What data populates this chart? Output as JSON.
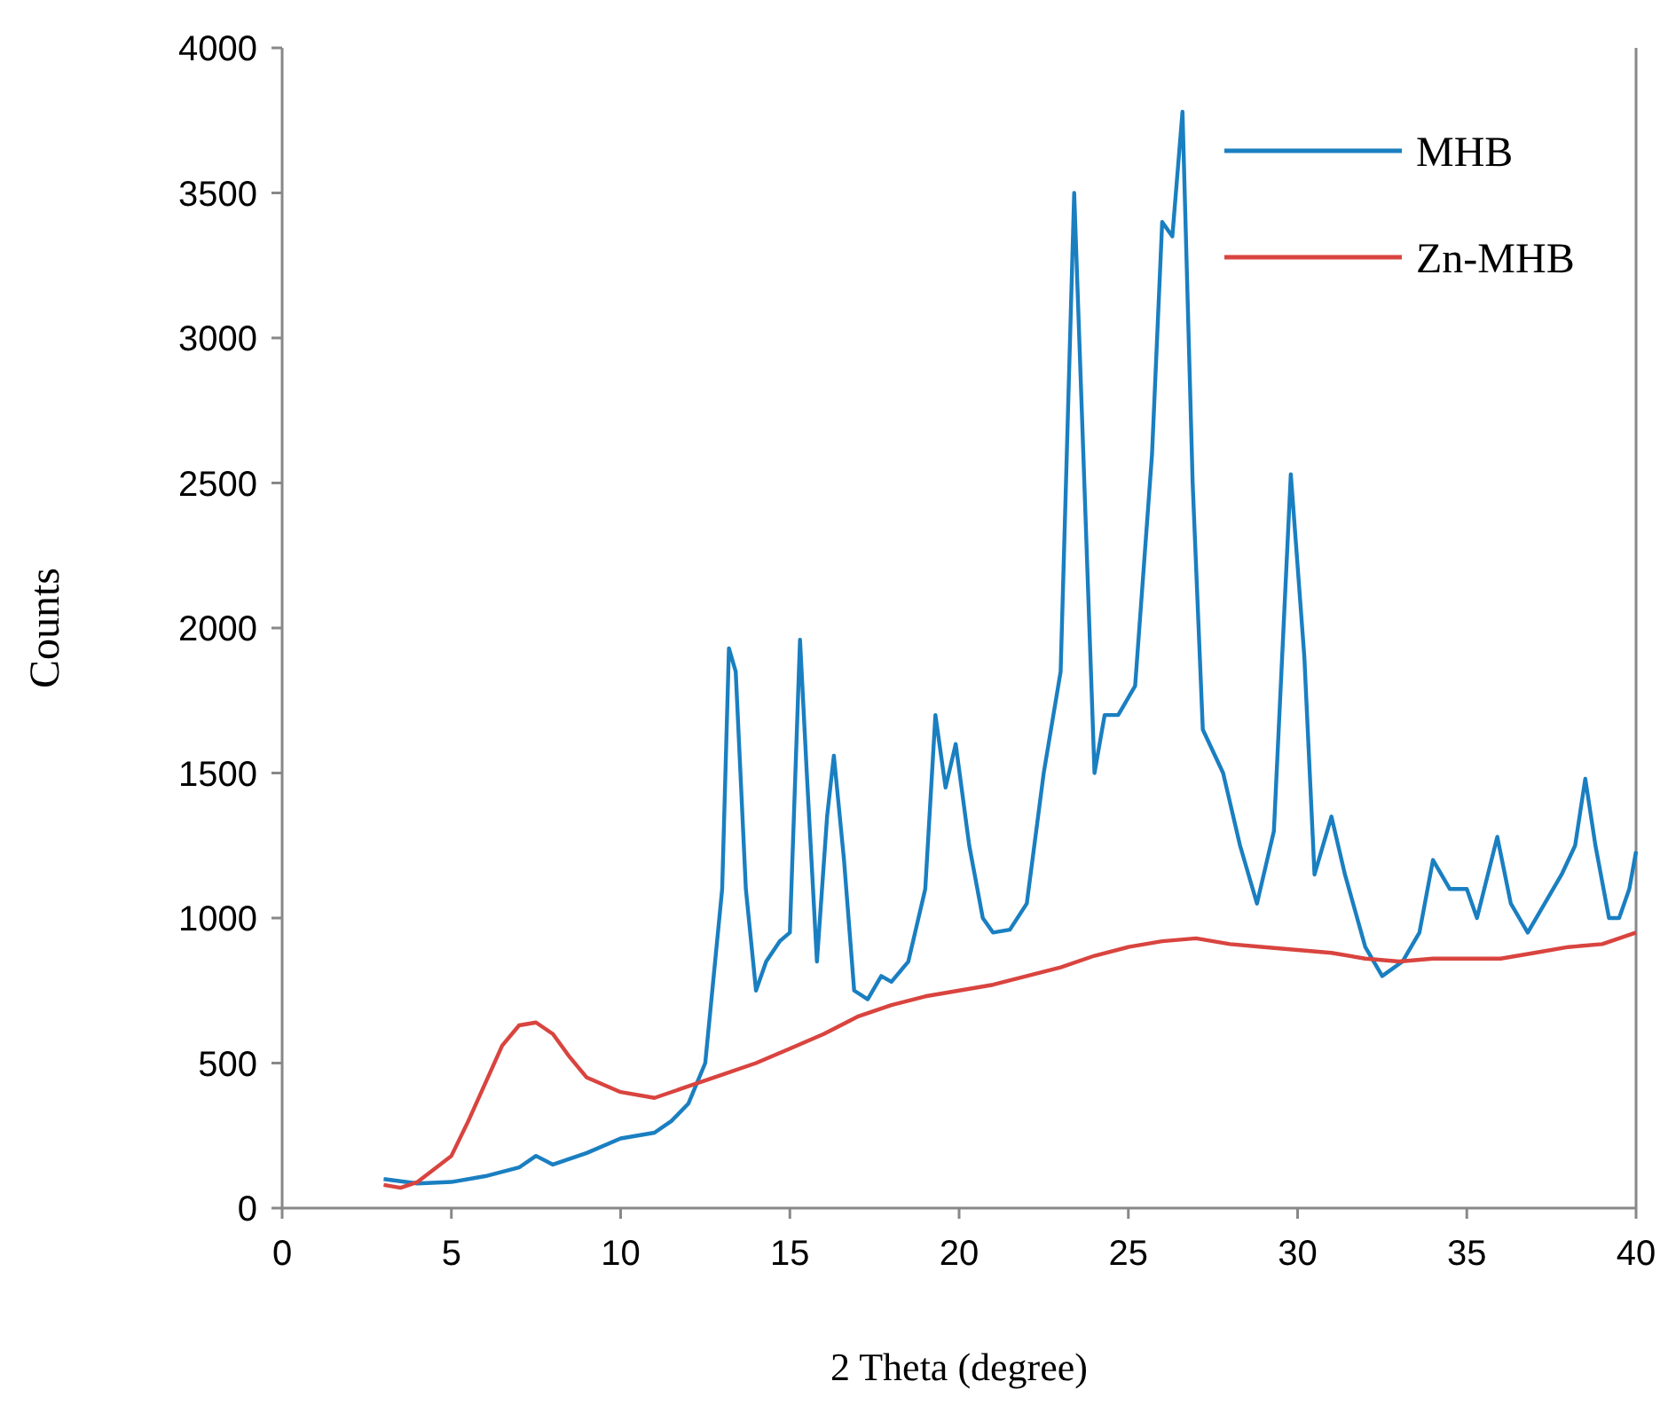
{
  "chart_data": {
    "type": "line",
    "xlabel": "2 Theta (degree)",
    "ylabel": "Counts",
    "xlim": [
      0,
      40
    ],
    "xticks": [
      0,
      5,
      10,
      15,
      20,
      25,
      30,
      35,
      40
    ],
    "ylim": [
      0,
      4000
    ],
    "yticks": [
      0,
      500,
      1000,
      1500,
      2000,
      2500,
      3000,
      3500,
      4000
    ],
    "grid": false,
    "legend": "top right",
    "marker": "none",
    "line_style": "solid",
    "series": [
      {
        "name": "MHB",
        "color": "#1a7fc1",
        "x": [
          3,
          4,
          5,
          6,
          7,
          7.5,
          8,
          9,
          10,
          11,
          11.5,
          12,
          12.5,
          13,
          13.2,
          13.4,
          13.7,
          14,
          14.3,
          14.7,
          15,
          15.3,
          15.5,
          15.8,
          16.1,
          16.3,
          16.6,
          16.9,
          17.3,
          17.7,
          18,
          18.5,
          19,
          19.3,
          19.6,
          19.9,
          20.3,
          20.7,
          21,
          21.5,
          22,
          22.5,
          23,
          23.4,
          23.7,
          24,
          24.3,
          24.7,
          25.2,
          25.7,
          26,
          26.3,
          26.6,
          26.9,
          27.2,
          27.8,
          28.3,
          28.8,
          29.3,
          29.8,
          30.2,
          30.5,
          31,
          31.4,
          32,
          32.5,
          33.1,
          33.6,
          34,
          34.5,
          35,
          35.3,
          35.9,
          36.3,
          36.8,
          37.3,
          37.8,
          38.2,
          38.5,
          38.8,
          39.2,
          39.5,
          39.8,
          40
        ],
        "values": [
          100,
          85,
          90,
          110,
          140,
          180,
          150,
          190,
          240,
          260,
          300,
          360,
          500,
          1100,
          1930,
          1850,
          1100,
          750,
          850,
          920,
          950,
          1960,
          1500,
          850,
          1350,
          1560,
          1200,
          750,
          720,
          800,
          780,
          850,
          1100,
          1700,
          1450,
          1600,
          1250,
          1000,
          950,
          960,
          1050,
          1500,
          1850,
          3500,
          2500,
          1500,
          1700,
          1700,
          1800,
          2600,
          3400,
          3350,
          3780,
          2500,
          1650,
          1500,
          1250,
          1050,
          1300,
          2530,
          1900,
          1150,
          1350,
          1150,
          900,
          800,
          850,
          950,
          1200,
          1100,
          1100,
          1000,
          1280,
          1050,
          950,
          1050,
          1150,
          1250,
          1480,
          1250,
          1000,
          1000,
          1100,
          1230
        ]
      },
      {
        "name": "Zn-MHB",
        "color": "#d9443f",
        "x": [
          3,
          3.5,
          4,
          5,
          5.5,
          6,
          6.5,
          7,
          7.5,
          8,
          8.5,
          9,
          10,
          11,
          12,
          13,
          14,
          15,
          16,
          17,
          18,
          19,
          20,
          21,
          22,
          23,
          24,
          25,
          26,
          27,
          28,
          29,
          30,
          31,
          32,
          33,
          34,
          35,
          36,
          37,
          38,
          39,
          40
        ],
        "values": [
          80,
          70,
          90,
          180,
          300,
          430,
          560,
          630,
          640,
          600,
          520,
          450,
          400,
          380,
          420,
          460,
          500,
          550,
          600,
          660,
          700,
          730,
          750,
          770,
          800,
          830,
          870,
          900,
          920,
          930,
          910,
          900,
          890,
          880,
          860,
          850,
          860,
          860,
          860,
          880,
          900,
          910,
          950
        ]
      }
    ]
  }
}
